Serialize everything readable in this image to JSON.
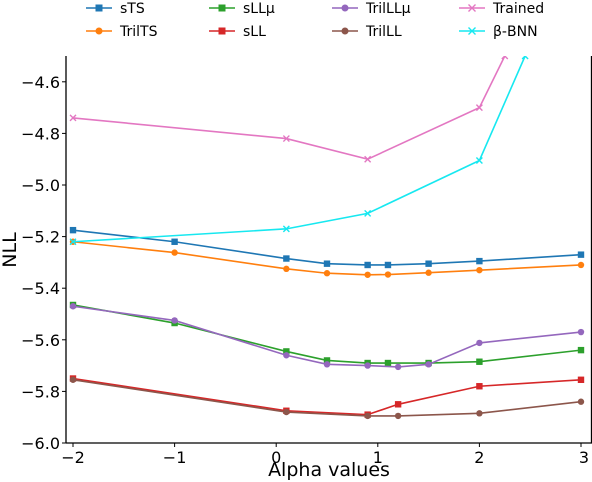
{
  "chart_data": {
    "type": "line",
    "xlabel": "Alpha values",
    "ylabel": "NLL",
    "xlim": [
      -2.05,
      3.0
    ],
    "ylim": [
      -6.0,
      -4.5
    ],
    "xticks": [
      -2,
      -1,
      0,
      1,
      2,
      3
    ],
    "xtick_labels": [
      "−2",
      "−1",
      "0",
      "1",
      "2",
      "3"
    ],
    "yticks": [
      -6.0,
      -5.8,
      -5.6,
      -5.4,
      -5.2,
      -5.0,
      -4.8,
      -4.6
    ],
    "ytick_labels": [
      "−6.0",
      "−5.8",
      "−5.6",
      "−5.4",
      "−5.2",
      "−5.0",
      "−4.8",
      "−4.6"
    ],
    "grid": false,
    "legend_position": "top",
    "series": [
      {
        "name": "sTS",
        "color": "#1f77b4",
        "marker": "square",
        "x": [
          -2,
          -1,
          0.1,
          0.5,
          0.9,
          1.1,
          1.5,
          2,
          3
        ],
        "y": [
          -5.175,
          -5.22,
          -5.285,
          -5.305,
          -5.31,
          -5.31,
          -5.305,
          -5.295,
          -5.27
        ]
      },
      {
        "name": "TrilTS",
        "color": "#ff7f0e",
        "marker": "circle",
        "x": [
          -2,
          -1,
          0.1,
          0.5,
          0.9,
          1.1,
          1.5,
          2,
          3
        ],
        "y": [
          -5.22,
          -5.262,
          -5.325,
          -5.342,
          -5.348,
          -5.347,
          -5.34,
          -5.33,
          -5.31
        ]
      },
      {
        "name": "sLLμ",
        "color": "#2ca02c",
        "marker": "square",
        "x": [
          -2,
          -1,
          0.1,
          0.5,
          0.9,
          1.1,
          1.5,
          2,
          3
        ],
        "y": [
          -5.465,
          -5.535,
          -5.645,
          -5.68,
          -5.69,
          -5.69,
          -5.69,
          -5.685,
          -5.64
        ]
      },
      {
        "name": "sLL",
        "color": "#d62728",
        "marker": "square",
        "x": [
          -2,
          0.1,
          0.9,
          1.2,
          2,
          3
        ],
        "y": [
          -5.75,
          -5.875,
          -5.89,
          -5.85,
          -5.78,
          -5.755
        ]
      },
      {
        "name": "TrilLLμ",
        "color": "#9467bd",
        "marker": "circle",
        "x": [
          -2,
          -1,
          0.1,
          0.5,
          0.9,
          1.2,
          1.5,
          2,
          3
        ],
        "y": [
          -5.47,
          -5.525,
          -5.66,
          -5.695,
          -5.7,
          -5.705,
          -5.695,
          -5.612,
          -5.57
        ]
      },
      {
        "name": "TrilLL",
        "color": "#8c564b",
        "marker": "circle",
        "x": [
          -2,
          0.1,
          0.9,
          1.2,
          2,
          3
        ],
        "y": [
          -5.755,
          -5.88,
          -5.895,
          -5.895,
          -5.885,
          -5.84
        ]
      },
      {
        "name": "Trained",
        "color": "#e377c2",
        "marker": "x",
        "x": [
          -2,
          0.1,
          0.9,
          2,
          2.25
        ],
        "y": [
          -4.74,
          -4.82,
          -4.9,
          -4.7,
          -4.5
        ]
      },
      {
        "name": "β-BNN",
        "color": "#17e8f0",
        "marker": "x",
        "x": [
          -2,
          0.1,
          0.9,
          2,
          2.45
        ],
        "y": [
          -5.22,
          -5.17,
          -5.11,
          -4.905,
          -4.5
        ]
      }
    ]
  }
}
